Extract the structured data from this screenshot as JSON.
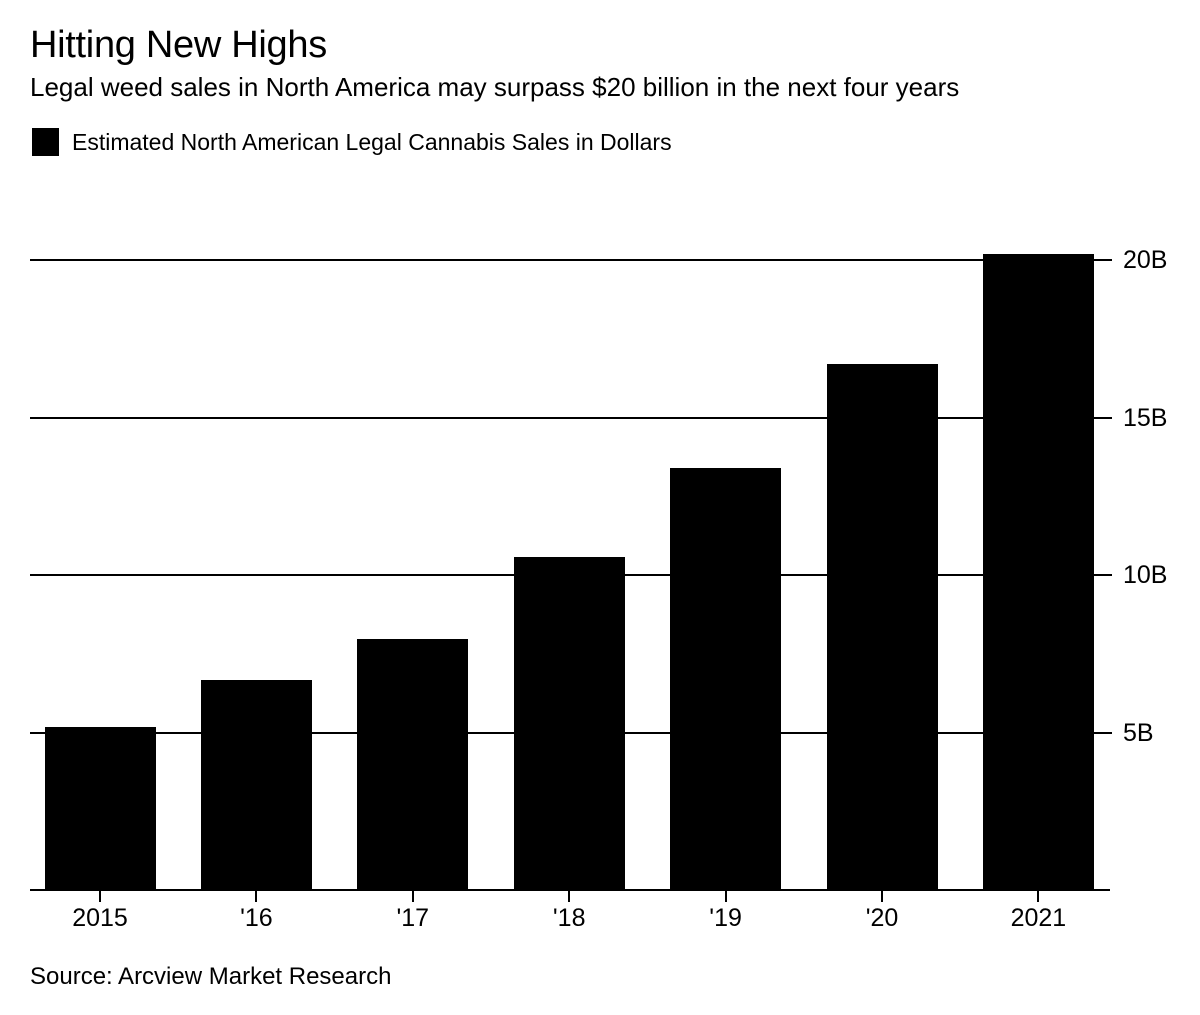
{
  "page": {
    "background": "#ffffff",
    "text_color": "#000000"
  },
  "header": {
    "title": "Hitting New Highs",
    "subtitle": "Legal weed sales in North America may surpass $20 billion in the next four years"
  },
  "legend": {
    "swatch_color": "#000000",
    "label": "Estimated North American Legal Cannabis Sales in Dollars"
  },
  "chart_data": {
    "type": "bar",
    "title": "Hitting New Highs",
    "subtitle": "Legal weed sales in North America may surpass $20 billion in the next four years",
    "series_name": "Estimated North American Legal Cannabis Sales in Dollars",
    "unit": "USD billions",
    "categories": [
      "2015",
      "'16",
      "'17",
      "'18",
      "'19",
      "'20",
      "2021"
    ],
    "values": [
      5.2,
      6.7,
      8.0,
      10.6,
      13.4,
      16.7,
      20.2
    ],
    "yticks": [
      5,
      10,
      15,
      20
    ],
    "ytick_labels": [
      "5B",
      "10B",
      "15B",
      "20B"
    ],
    "ylim": [
      0,
      20.6
    ],
    "grid": true,
    "ytick_side": "right",
    "legend_position": "top-left",
    "bar_color": "#000000",
    "gridline_color": "#000000"
  },
  "footer": {
    "source": "Source: Arcview Market Research"
  }
}
